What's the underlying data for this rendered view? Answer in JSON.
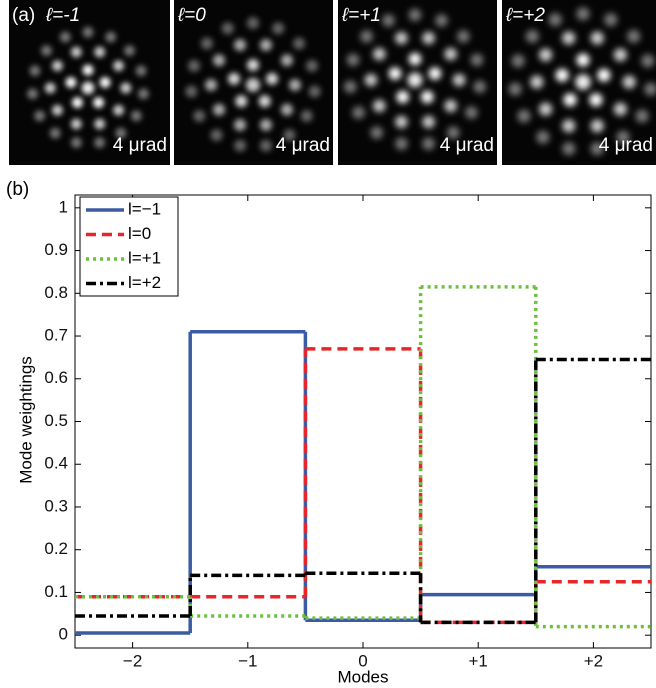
{
  "panel_a": {
    "label": "(a)",
    "images": [
      {
        "label": "ℓ=-1",
        "scale": "4 μrad"
      },
      {
        "label": "ℓ=0",
        "scale": "4 μrad"
      },
      {
        "label": "ℓ=+1",
        "scale": "4 μrad"
      },
      {
        "label": "ℓ=+2",
        "scale": "4 μrad"
      }
    ]
  },
  "chart_data": {
    "type": "step",
    "panel_label": "(b)",
    "x_label": "Modes",
    "y_label": "Mode weightings",
    "x": [
      -2,
      -1,
      0,
      1,
      2
    ],
    "xlim": [
      -2.5,
      2.5
    ],
    "xticks": [
      {
        "value": -2,
        "label": "−2"
      },
      {
        "value": -1,
        "label": "−1"
      },
      0,
      {
        "value": 1,
        "label": "+1"
      },
      {
        "value": 2,
        "label": "+2"
      }
    ],
    "ylim": [
      -0.03,
      1.03
    ],
    "yticks": [
      0,
      0.1,
      0.2,
      0.3,
      0.4,
      0.5,
      0.6,
      0.7,
      0.8,
      0.9,
      1
    ],
    "legend": "upper left",
    "series": [
      {
        "name": "l=−1",
        "color": "#3b5ca4",
        "line_style": "solid",
        "values": [
          0.005,
          0.71,
          0.035,
          0.095,
          0.16
        ]
      },
      {
        "name": "l=0",
        "color": "#e8262a",
        "line_style": "dashed",
        "values": [
          0.09,
          0.09,
          0.67,
          0.03,
          0.125
        ]
      },
      {
        "name": "l=+1",
        "color": "#6cc03c",
        "line_style": "dotted",
        "values": [
          0.09,
          0.045,
          0.04,
          0.815,
          0.02
        ]
      },
      {
        "name": "l=+2",
        "color": "#000000",
        "line_style": "dashdot",
        "values": [
          0.045,
          0.14,
          0.145,
          0.03,
          0.645
        ]
      }
    ]
  }
}
